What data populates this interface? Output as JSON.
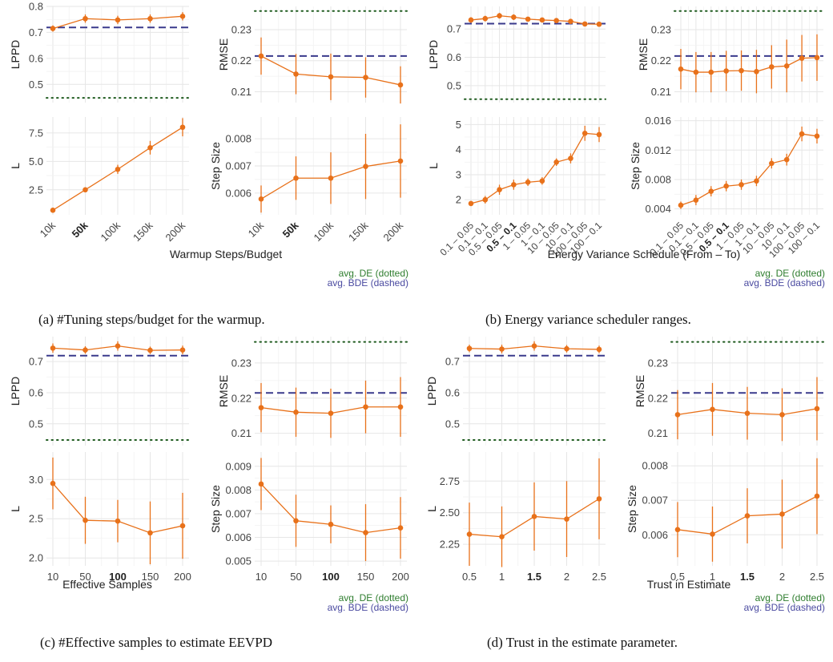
{
  "legend_labels": {
    "de": "avg. DE (dotted)",
    "bde": "avg. BDE (dashed)"
  },
  "colors": {
    "series": "#e8711a",
    "de_line": "#1f5b1f",
    "bde_line": "#3a3a8c",
    "legend_de": "#2e7d2e",
    "legend_bde": "#4a4aa0",
    "grid": "#e6e6e6",
    "text": "#444444"
  },
  "panels": [
    {
      "caption": "(a) #Tuning steps/budget for the warmup.",
      "xlabel": "Warmup Steps/Budget",
      "categories": [
        "10k",
        "50k",
        "100k",
        "150k",
        "200k"
      ],
      "bold_category": "50k",
      "rotate_ticks": true,
      "chart_data": [
        {
          "type": "line",
          "ylabel": "LPPD",
          "ylim": [
            0.43,
            0.8
          ],
          "yticks": [
            0.5,
            0.6,
            0.7,
            0.8
          ],
          "ytick_labels": [
            "0.5",
            "0.6",
            "0.7",
            "0.8"
          ],
          "values": [
            0.715,
            0.753,
            0.748,
            0.753,
            0.762
          ],
          "err": [
            0.012,
            0.016,
            0.016,
            0.016,
            0.016
          ],
          "de": 0.448,
          "bde": 0.719
        },
        {
          "type": "line",
          "ylabel": "RMSE",
          "ylim": [
            0.2065,
            0.2375
          ],
          "yticks": [
            0.21,
            0.22,
            0.23
          ],
          "ytick_labels": [
            "0.21",
            "0.22",
            "0.23"
          ],
          "values": [
            0.2215,
            0.2157,
            0.2148,
            0.2146,
            0.2122
          ],
          "err": [
            0.006,
            0.0065,
            0.0075,
            0.0065,
            0.006
          ],
          "de": 0.236,
          "bde": 0.2215
        },
        {
          "type": "line",
          "ylabel": "L",
          "ylim": [
            0.3,
            8.9
          ],
          "yticks": [
            2.5,
            5.0,
            7.5
          ],
          "ytick_labels": [
            "2.5",
            "5.0",
            "7.5"
          ],
          "values": [
            0.7,
            2.5,
            4.3,
            6.2,
            8.0
          ],
          "err": [
            0.0,
            0.1,
            0.4,
            0.6,
            0.8
          ]
        },
        {
          "type": "line",
          "ylabel": "Step Size",
          "ylim": [
            0.0052,
            0.0088
          ],
          "yticks": [
            0.006,
            0.007,
            0.008
          ],
          "ytick_labels": [
            "0.006",
            "0.007",
            "0.008"
          ],
          "values": [
            0.00578,
            0.00655,
            0.00655,
            0.00698,
            0.00718
          ],
          "err": [
            0.0005,
            0.0008,
            0.00095,
            0.0012,
            0.00135
          ]
        }
      ]
    },
    {
      "caption": "(b) Energy variance scheduler ranges.",
      "xlabel": "Energy Variance Schedule (From – To)",
      "categories": [
        "0.1 – 0.05",
        "0.1 – 0.1",
        "0.5 – 0.05",
        "0.5 – 0.1",
        "1 – 0.05",
        "1 – 0.1",
        "10 – 0.05",
        "10 – 0.1",
        "100 – 0.05",
        "100 – 0.1"
      ],
      "bold_category": "0.5 – 0.1",
      "rotate_ticks": true,
      "chart_data": [
        {
          "type": "line",
          "ylabel": "LPPD",
          "ylim": [
            0.44,
            0.78
          ],
          "yticks": [
            0.5,
            0.6,
            0.7
          ],
          "ytick_labels": [
            "0.5",
            "0.6",
            "0.7"
          ],
          "values": [
            0.732,
            0.737,
            0.747,
            0.742,
            0.735,
            0.732,
            0.73,
            0.727,
            0.718,
            0.717
          ],
          "err": [
            0.01,
            0.01,
            0.01,
            0.01,
            0.008,
            0.008,
            0.008,
            0.008,
            0.008,
            0.008
          ],
          "de": 0.452,
          "bde": 0.719
        },
        {
          "type": "line",
          "ylabel": "RMSE",
          "ylim": [
            0.2065,
            0.2375
          ],
          "yticks": [
            0.21,
            0.22,
            0.23
          ],
          "ytick_labels": [
            "0.21",
            "0.22",
            "0.23"
          ],
          "values": [
            0.2173,
            0.2163,
            0.2163,
            0.2167,
            0.2168,
            0.2165,
            0.218,
            0.2183,
            0.2208,
            0.221
          ],
          "err": [
            0.0065,
            0.0065,
            0.0065,
            0.0065,
            0.0065,
            0.007,
            0.007,
            0.0085,
            0.0075,
            0.0075
          ],
          "de": 0.236,
          "bde": 0.2215
        },
        {
          "type": "line",
          "ylabel": "L",
          "ylim": [
            1.4,
            5.3
          ],
          "yticks": [
            2,
            3,
            4,
            5
          ],
          "ytick_labels": [
            "2",
            "3",
            "4",
            "5"
          ],
          "values": [
            1.85,
            2.0,
            2.4,
            2.6,
            2.7,
            2.75,
            3.5,
            3.65,
            4.65,
            4.6
          ],
          "err": [
            0.1,
            0.15,
            0.2,
            0.2,
            0.15,
            0.15,
            0.15,
            0.2,
            0.3,
            0.3
          ]
        },
        {
          "type": "line",
          "ylabel": "Step Size",
          "ylim": [
            0.0032,
            0.0165
          ],
          "yticks": [
            0.004,
            0.008,
            0.012,
            0.016
          ],
          "ytick_labels": [
            "0.004",
            "0.008",
            "0.012",
            "0.016"
          ],
          "values": [
            0.0045,
            0.0052,
            0.0064,
            0.0071,
            0.0073,
            0.0078,
            0.0102,
            0.0107,
            0.0142,
            0.0139
          ],
          "err": [
            0.0005,
            0.0007,
            0.0007,
            0.0007,
            0.0007,
            0.0007,
            0.0007,
            0.0008,
            0.001,
            0.001
          ]
        }
      ]
    },
    {
      "caption": "(c) #Effective samples to estimate EEVPD",
      "xlabel": "Effective Samples",
      "categories": [
        "10",
        "50",
        "100",
        "150",
        "200"
      ],
      "bold_category": "100",
      "rotate_ticks": false,
      "chart_data": [
        {
          "type": "line",
          "ylabel": "LPPD",
          "ylim": [
            0.43,
            0.78
          ],
          "yticks": [
            0.5,
            0.6,
            0.7
          ],
          "ytick_labels": [
            "0.5",
            "0.6",
            "0.7"
          ],
          "values": [
            0.743,
            0.737,
            0.75,
            0.736,
            0.737
          ],
          "err": [
            0.015,
            0.012,
            0.015,
            0.012,
            0.014
          ],
          "de": 0.448,
          "bde": 0.719
        },
        {
          "type": "line",
          "ylabel": "RMSE",
          "ylim": [
            0.2065,
            0.2375
          ],
          "yticks": [
            0.21,
            0.22,
            0.23
          ],
          "ytick_labels": [
            "0.21",
            "0.22",
            "0.23"
          ],
          "values": [
            0.2173,
            0.216,
            0.2157,
            0.2175,
            0.2175
          ],
          "err": [
            0.007,
            0.007,
            0.007,
            0.0075,
            0.0085
          ],
          "de": 0.236,
          "bde": 0.2215
        },
        {
          "type": "line",
          "ylabel": "L",
          "ylim": [
            1.9,
            3.35
          ],
          "yticks": [
            2.0,
            2.5,
            3.0
          ],
          "ytick_labels": [
            "2.0",
            "2.5",
            "3.0"
          ],
          "values": [
            2.95,
            2.48,
            2.47,
            2.32,
            2.41
          ],
          "err": [
            0.33,
            0.3,
            0.27,
            0.4,
            0.42
          ]
        },
        {
          "type": "line",
          "ylabel": "Step Size",
          "ylim": [
            0.0048,
            0.0096
          ],
          "yticks": [
            0.005,
            0.006,
            0.007,
            0.008,
            0.009
          ],
          "ytick_labels": [
            "0.005",
            "0.006",
            "0.007",
            "0.008",
            "0.009"
          ],
          "values": [
            0.00825,
            0.0067,
            0.00655,
            0.0062,
            0.0064
          ],
          "err": [
            0.0011,
            0.0011,
            0.0008,
            0.0012,
            0.0013
          ]
        }
      ]
    },
    {
      "caption": "(d) Trust in the estimate parameter.",
      "xlabel": "Trust in Estimate",
      "categories": [
        "0.5",
        "1",
        "1.5",
        "2",
        "2.5"
      ],
      "bold_category": "1.5",
      "rotate_ticks": false,
      "chart_data": [
        {
          "type": "line",
          "ylabel": "LPPD",
          "ylim": [
            0.43,
            0.78
          ],
          "yticks": [
            0.5,
            0.6,
            0.7
          ],
          "ytick_labels": [
            "0.5",
            "0.6",
            "0.7"
          ],
          "values": [
            0.742,
            0.74,
            0.75,
            0.741,
            0.739
          ],
          "err": [
            0.012,
            0.014,
            0.015,
            0.012,
            0.012
          ],
          "de": 0.448,
          "bde": 0.719
        },
        {
          "type": "line",
          "ylabel": "RMSE",
          "ylim": [
            0.2065,
            0.2375
          ],
          "yticks": [
            0.21,
            0.22,
            0.23
          ],
          "ytick_labels": [
            "0.21",
            "0.22",
            "0.23"
          ],
          "values": [
            0.2153,
            0.2168,
            0.2157,
            0.2153,
            0.217
          ],
          "err": [
            0.007,
            0.0075,
            0.0075,
            0.0075,
            0.009
          ],
          "de": 0.236,
          "bde": 0.2215
        },
        {
          "type": "line",
          "ylabel": "L",
          "ylim": [
            2.08,
            2.98
          ],
          "yticks": [
            2.25,
            2.5,
            2.75
          ],
          "ytick_labels": [
            "2.25",
            "2.50",
            "2.75"
          ],
          "values": [
            2.33,
            2.31,
            2.47,
            2.45,
            2.61
          ],
          "err": [
            0.25,
            0.24,
            0.27,
            0.3,
            0.32
          ]
        },
        {
          "type": "line",
          "ylabel": "Step Size",
          "ylim": [
            0.0051,
            0.0084
          ],
          "yticks": [
            0.006,
            0.007,
            0.008
          ],
          "ytick_labels": [
            "0.006",
            "0.007",
            "0.008"
          ],
          "values": [
            0.00615,
            0.00602,
            0.00655,
            0.0066,
            0.00712
          ],
          "err": [
            0.0008,
            0.0008,
            0.0008,
            0.001,
            0.0011
          ]
        }
      ]
    }
  ]
}
